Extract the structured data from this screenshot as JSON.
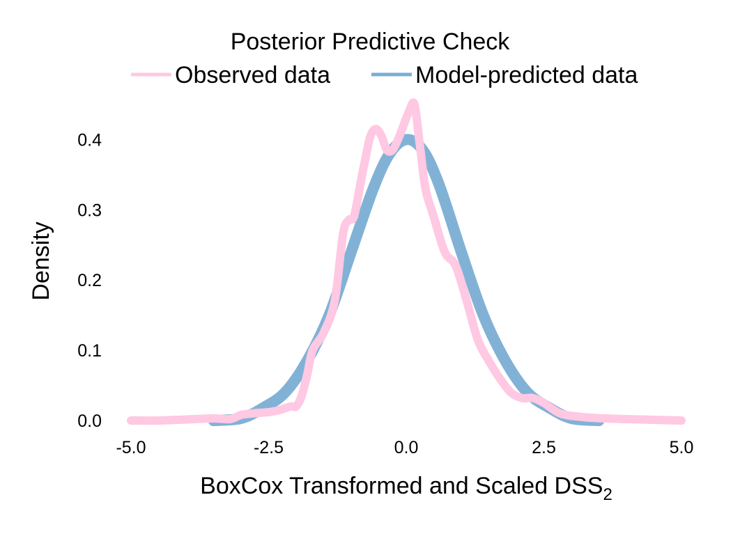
{
  "chart_data": {
    "type": "line",
    "title": "",
    "legend": {
      "title": "Posterior Predictive Check",
      "placement": "top",
      "entries": [
        {
          "label": "Observed data",
          "color": "#ffc8e3"
        },
        {
          "label": "Model-predicted data",
          "color": "#7aaed4"
        }
      ]
    },
    "xlabel": "BoxCox Transformed and Scaled DSS",
    "xlabel_subscript": "2",
    "ylabel": "Density",
    "xlim": [
      -5.0,
      5.0
    ],
    "ylim": [
      0.0,
      0.45
    ],
    "xticks": [
      -5.0,
      -2.5,
      0.0,
      2.5,
      5.0
    ],
    "xtick_labels": [
      "-5.0",
      "-2.5",
      "0.0",
      "2.5",
      "5.0"
    ],
    "yticks": [
      0.0,
      0.1,
      0.2,
      0.3,
      0.4
    ],
    "ytick_labels": [
      "0.0",
      "0.1",
      "0.2",
      "0.3",
      "0.4"
    ],
    "grid": false,
    "series": [
      {
        "name": "Model-predicted data",
        "color": "#7aaed4",
        "x": [
          -3.5,
          -3.0,
          -2.6,
          -2.2,
          -1.8,
          -1.4,
          -1.0,
          -0.6,
          -0.3,
          0.0,
          0.3,
          0.6,
          1.0,
          1.4,
          1.8,
          2.2,
          2.6,
          3.0,
          3.5
        ],
        "y": [
          0.0,
          0.003,
          0.018,
          0.04,
          0.085,
          0.15,
          0.24,
          0.33,
          0.38,
          0.4,
          0.385,
          0.335,
          0.24,
          0.15,
          0.085,
          0.04,
          0.018,
          0.003,
          0.0
        ]
      },
      {
        "name": "Observed data",
        "color": "#ffc8e3",
        "x": [
          -5.0,
          -4.5,
          -4.0,
          -3.5,
          -3.2,
          -3.0,
          -2.8,
          -2.5,
          -2.3,
          -2.1,
          -2.0,
          -1.9,
          -1.8,
          -1.7,
          -1.5,
          -1.3,
          -1.15,
          -1.05,
          -0.95,
          -0.85,
          -0.75,
          -0.65,
          -0.55,
          -0.45,
          -0.35,
          -0.25,
          -0.15,
          -0.05,
          0.05,
          0.15,
          0.25,
          0.35,
          0.5,
          0.7,
          0.9,
          1.1,
          1.3,
          1.5,
          1.7,
          1.9,
          2.1,
          2.3,
          2.5,
          2.8,
          3.2,
          3.6,
          4.0,
          4.5,
          5.0
        ],
        "y": [
          0.0,
          0.0,
          0.0015,
          0.003,
          0.002,
          0.008,
          0.01,
          0.012,
          0.015,
          0.02,
          0.02,
          0.035,
          0.065,
          0.1,
          0.125,
          0.17,
          0.265,
          0.285,
          0.29,
          0.33,
          0.37,
          0.405,
          0.415,
          0.405,
          0.385,
          0.385,
          0.4,
          0.42,
          0.44,
          0.45,
          0.39,
          0.33,
          0.29,
          0.24,
          0.22,
          0.17,
          0.115,
          0.085,
          0.06,
          0.04,
          0.032,
          0.032,
          0.025,
          0.01,
          0.005,
          0.003,
          0.002,
          0.001,
          0.0
        ]
      }
    ]
  }
}
